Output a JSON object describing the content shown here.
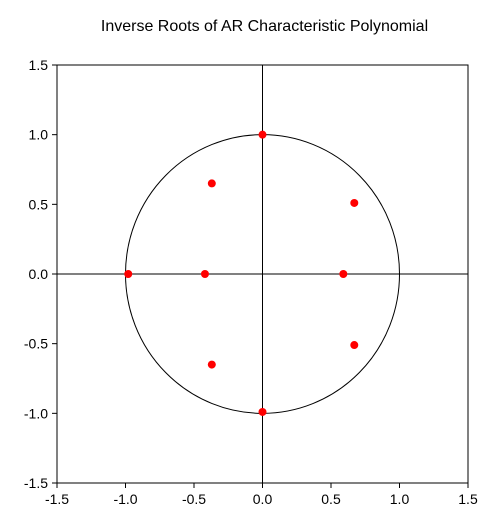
{
  "chart_data": {
    "type": "scatter",
    "title": "Inverse Roots of AR Characteristic Polynomial",
    "xlabel": "",
    "ylabel": "",
    "xlim": [
      -1.5,
      1.5
    ],
    "ylim": [
      -1.5,
      1.5
    ],
    "xticks": [
      "-1.5",
      "-1.0",
      "-0.5",
      "0.0",
      "0.5",
      "1.0",
      "1.5"
    ],
    "yticks": [
      "1.5",
      "1.0",
      "0.5",
      "0.0",
      "-0.5",
      "-1.0",
      "-1.5"
    ],
    "xtick_values": [
      -1.5,
      -1.0,
      -0.5,
      0.0,
      0.5,
      1.0,
      1.5
    ],
    "ytick_values": [
      1.5,
      1.0,
      0.5,
      0.0,
      -0.5,
      -1.0,
      -1.5
    ],
    "unit_circle": true,
    "grid": false,
    "point_color": "#ff0000",
    "line_color": "#000000",
    "points": [
      {
        "x": 0.0,
        "y": 1.0
      },
      {
        "x": -0.37,
        "y": 0.65
      },
      {
        "x": 0.67,
        "y": 0.51
      },
      {
        "x": -0.98,
        "y": 0.0
      },
      {
        "x": -0.42,
        "y": 0.0
      },
      {
        "x": 0.59,
        "y": 0.0
      },
      {
        "x": 0.67,
        "y": -0.51
      },
      {
        "x": -0.37,
        "y": -0.65
      },
      {
        "x": 0.0,
        "y": -0.99
      }
    ]
  }
}
